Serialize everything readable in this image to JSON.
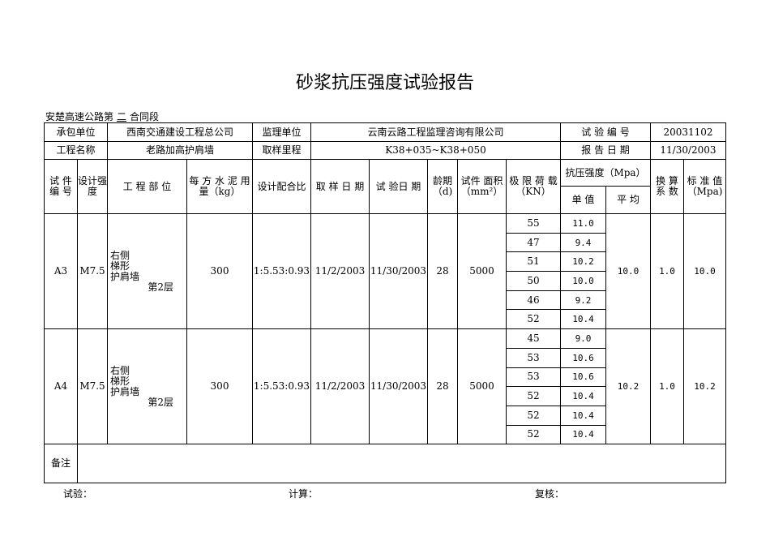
{
  "title": "砂浆抗压强度试验报告",
  "section": {
    "prefix": "安楚高速公路第",
    "number": "二",
    "suffix": "合同段"
  },
  "header": {
    "contractor_label": "承包单位",
    "contractor": "西南交通建设工程总公司",
    "supervisor_label": "监理单位",
    "supervisor": "云南云路工程监理咨询有限公司",
    "test_no_label": "试 验 编 号",
    "test_no": "20031102",
    "project_label": "工程名称",
    "project": "老路加高护肩墙",
    "chainage_label": "取样里程",
    "chainage": "K38+035~K38+050",
    "report_date_label": "报 告 日 期",
    "report_date": "11/30/2003"
  },
  "columns": {
    "specimen_no": "试 件 编 号",
    "design_strength": "设计强度",
    "part": "工 程 部 位",
    "cement": "每 方 水 泥 用 量（kg）",
    "mix": "设计配合比",
    "sample_date": "取 样 日 期",
    "test_date": "试 验日 期",
    "age": "龄期（d)",
    "area": "试件 面积（mm²）",
    "load": "极 限 荷 载（KN）",
    "strength": "抗压强度（Mpa）",
    "single": "单 值",
    "avg": "平 均",
    "factor": "换 算 系 数",
    "std": "标 准 值（Mpa)"
  },
  "specimens": [
    {
      "id": "A3",
      "grade": "M7.5",
      "part": [
        "右侧",
        "梯形",
        "护肩墙"
      ],
      "floor": "第2层",
      "cement": "300",
      "mix": "1:5.53:0.93",
      "sample_date": "11/2/2003",
      "test_date": "11/30/2003",
      "age": "28",
      "area": "5000",
      "rows": [
        {
          "load": "55",
          "value": "11.0"
        },
        {
          "load": "47",
          "value": "9.4"
        },
        {
          "load": "51",
          "value": "10.2"
        },
        {
          "load": "50",
          "value": "10.0"
        },
        {
          "load": "46",
          "value": "9.2"
        },
        {
          "load": "52",
          "value": "10.4"
        }
      ],
      "avg": "10.0",
      "factor": "1.0",
      "std": "10.0"
    },
    {
      "id": "A4",
      "grade": "M7.5",
      "part": [
        "右侧",
        "梯形",
        "护肩墙"
      ],
      "floor": "第2层",
      "cement": "300",
      "mix": "1:5.53:0.93",
      "sample_date": "11/2/2003",
      "test_date": "11/30/2003",
      "age": "28",
      "area": "5000",
      "rows": [
        {
          "load": "45",
          "value": "9.0"
        },
        {
          "load": "53",
          "value": "10.6"
        },
        {
          "load": "53",
          "value": "10.6"
        },
        {
          "load": "52",
          "value": "10.4"
        },
        {
          "load": "52",
          "value": "10.4"
        },
        {
          "load": "52",
          "value": "10.4"
        }
      ],
      "avg": "10.2",
      "factor": "1.0",
      "std": "10.2"
    }
  ],
  "remark_label": "备注",
  "footer": {
    "tester": "试验：",
    "calc": "计算：",
    "review": "复核："
  }
}
